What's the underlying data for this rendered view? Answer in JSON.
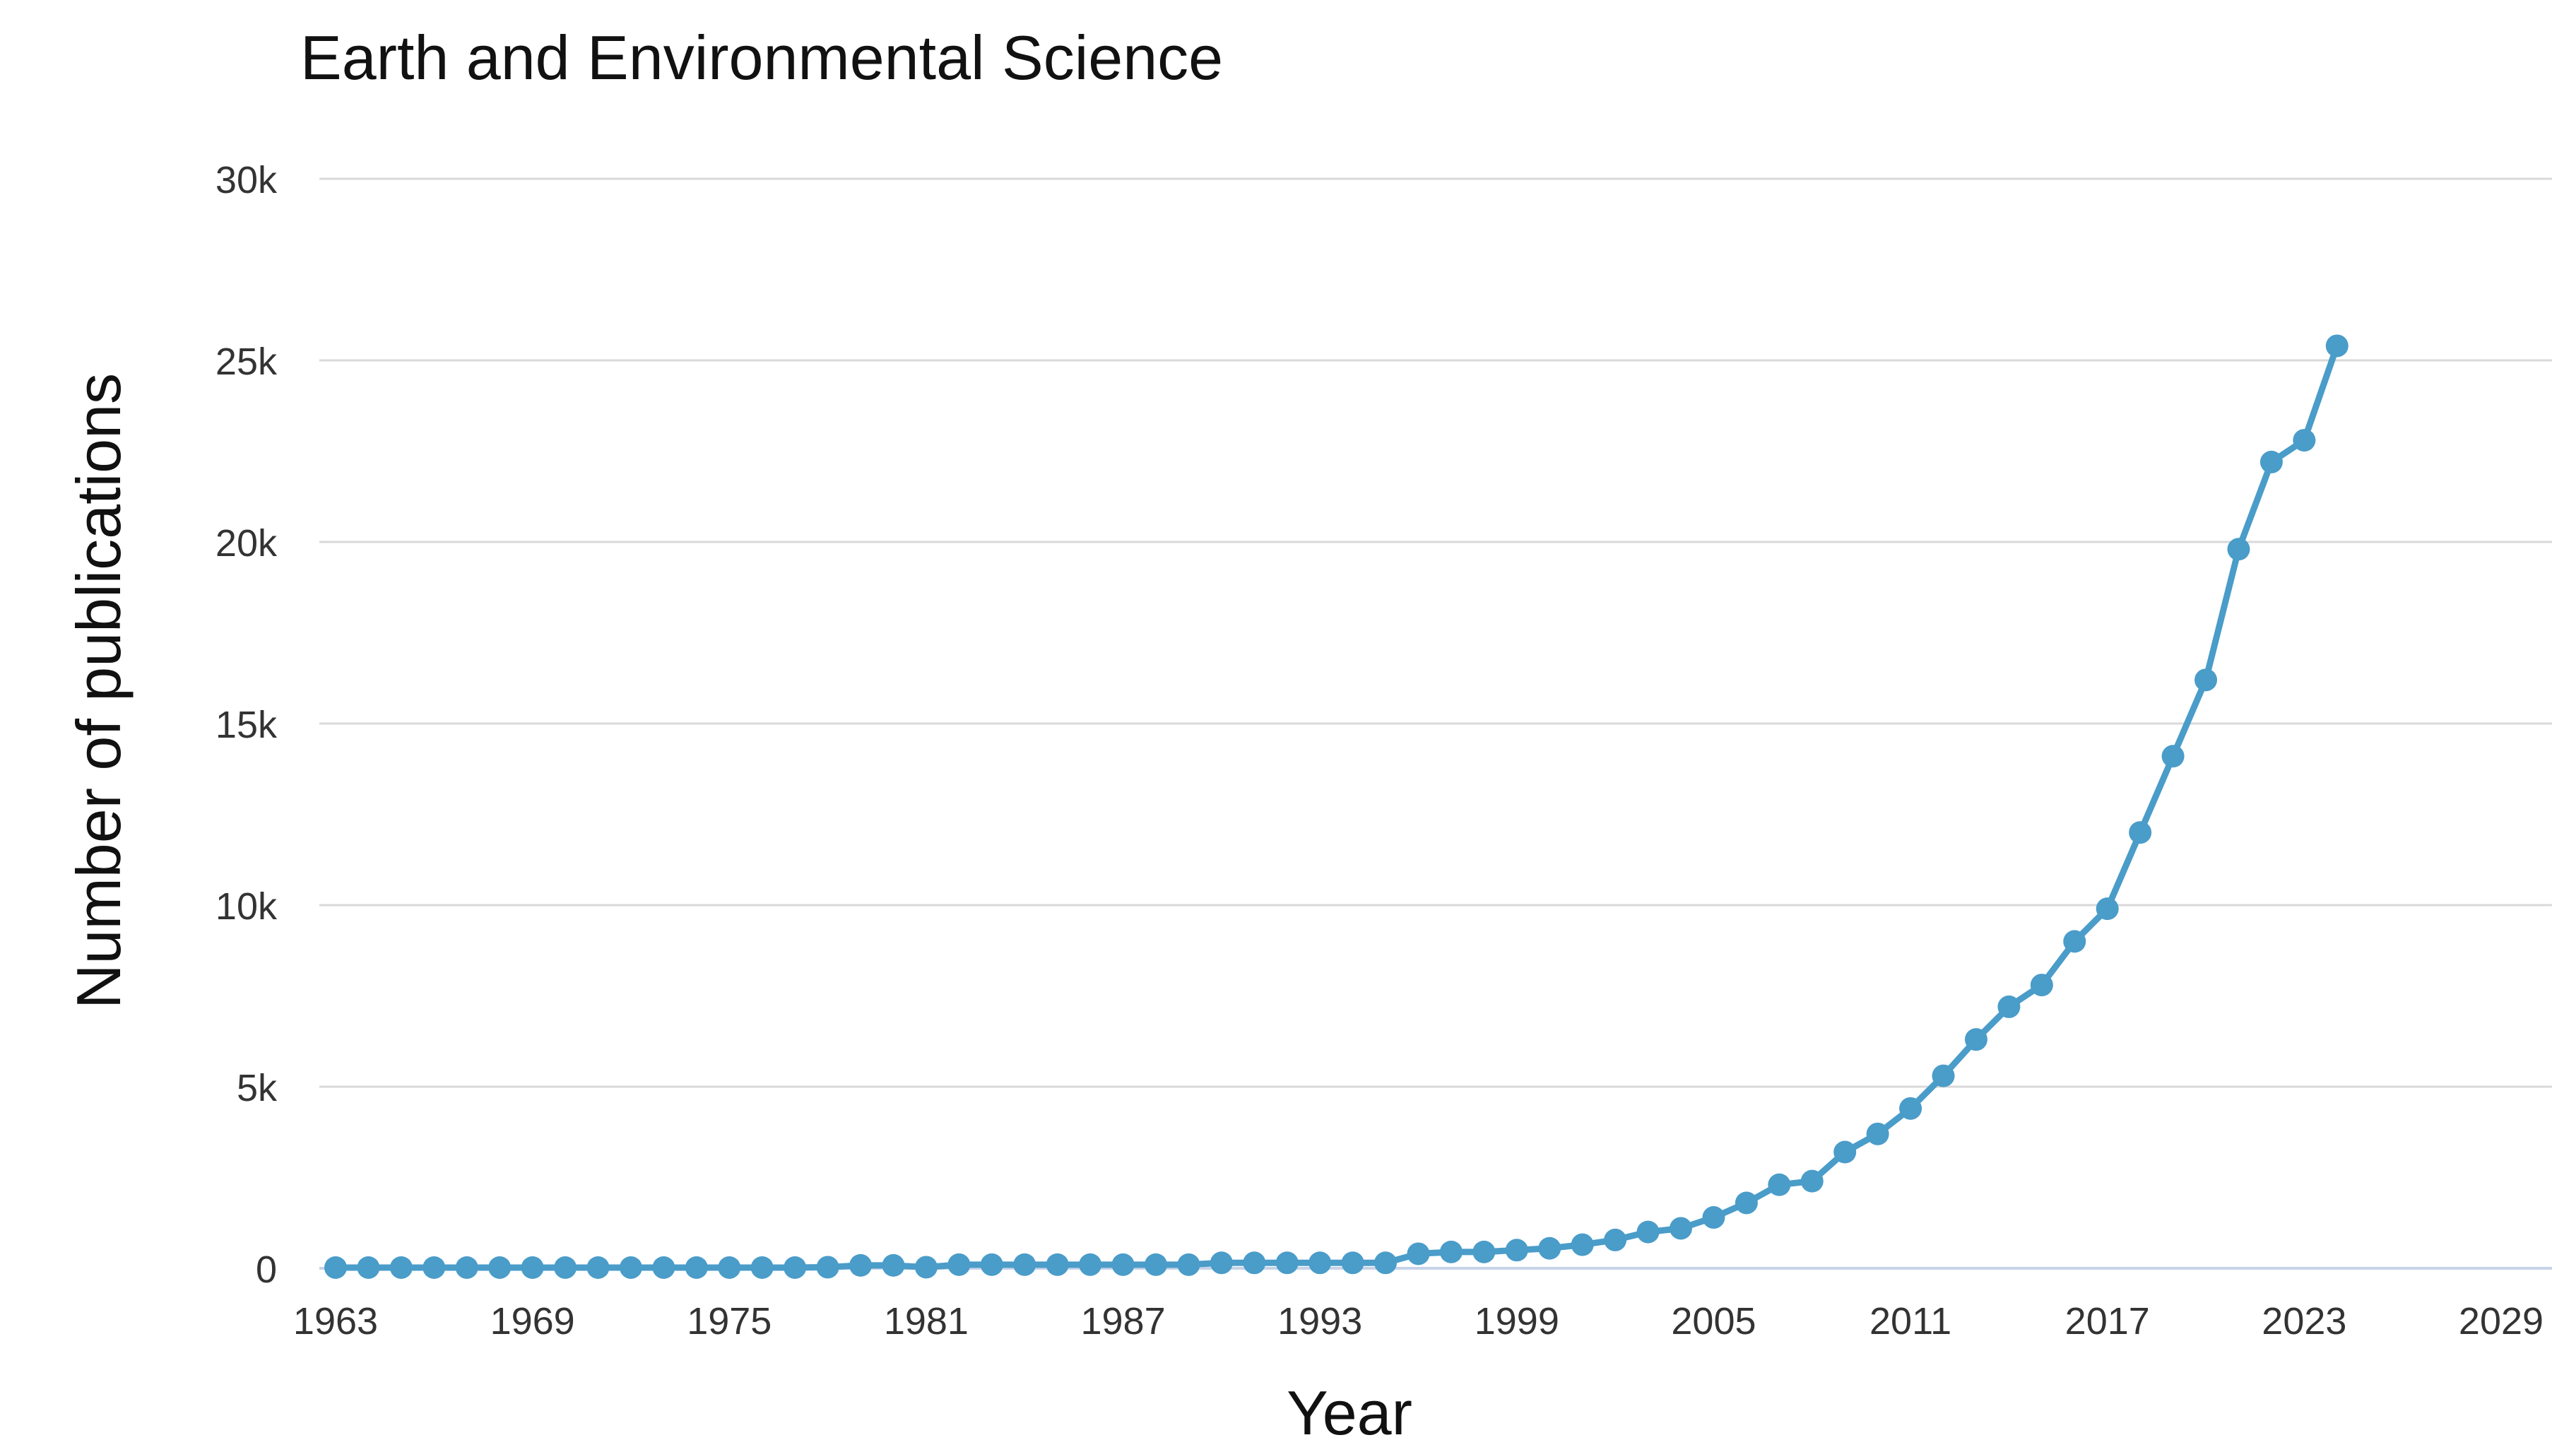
{
  "chart_data": {
    "type": "line",
    "title": "Earth and Environmental Science",
    "xlabel": "Year",
    "ylabel": "Number of publications",
    "xlim": [
      1963,
      2029
    ],
    "ylim": [
      0,
      30000
    ],
    "x_ticks": [
      "1963",
      "1969",
      "1975",
      "1981",
      "1987",
      "1993",
      "1999",
      "2005",
      "2011",
      "2017",
      "2023",
      "2029"
    ],
    "y_ticks": [
      "0",
      "5k",
      "10k",
      "15k",
      "20k",
      "25k",
      "30k"
    ],
    "y_tick_values": [
      0,
      5000,
      10000,
      15000,
      20000,
      25000,
      30000
    ],
    "grid": true,
    "series_color": "#4a9cc9",
    "series": [
      {
        "x": [
          1963,
          1964,
          1965,
          1966,
          1967,
          1968,
          1969,
          1970,
          1971,
          1972,
          1973,
          1974,
          1975,
          1976,
          1977,
          1978,
          1979,
          1980,
          1981,
          1982,
          1983,
          1984,
          1985,
          1986,
          1987,
          1988,
          1989,
          1990,
          1991,
          1992,
          1993,
          1994,
          1995,
          1996,
          1997,
          1998,
          1999,
          2000,
          2001,
          2002,
          2003,
          2004,
          2005,
          2006,
          2007,
          2008,
          2009,
          2010,
          2011,
          2012,
          2013,
          2014,
          2015,
          2016,
          2017,
          2018,
          2019,
          2020,
          2021,
          2022,
          2023,
          2024
        ],
        "values": [
          20,
          20,
          20,
          20,
          20,
          20,
          20,
          20,
          20,
          20,
          20,
          20,
          20,
          20,
          20,
          30,
          80,
          80,
          30,
          100,
          100,
          100,
          100,
          100,
          100,
          100,
          100,
          150,
          150,
          150,
          150,
          150,
          150,
          400,
          450,
          450,
          500,
          550,
          650,
          780,
          1000,
          1100,
          1400,
          1800,
          2300,
          2400,
          3200,
          3700,
          4400,
          5300,
          6300,
          7200,
          7800,
          9000,
          9900,
          12000,
          14100,
          16200,
          19800,
          22200,
          22800,
          25400
        ]
      }
    ]
  }
}
